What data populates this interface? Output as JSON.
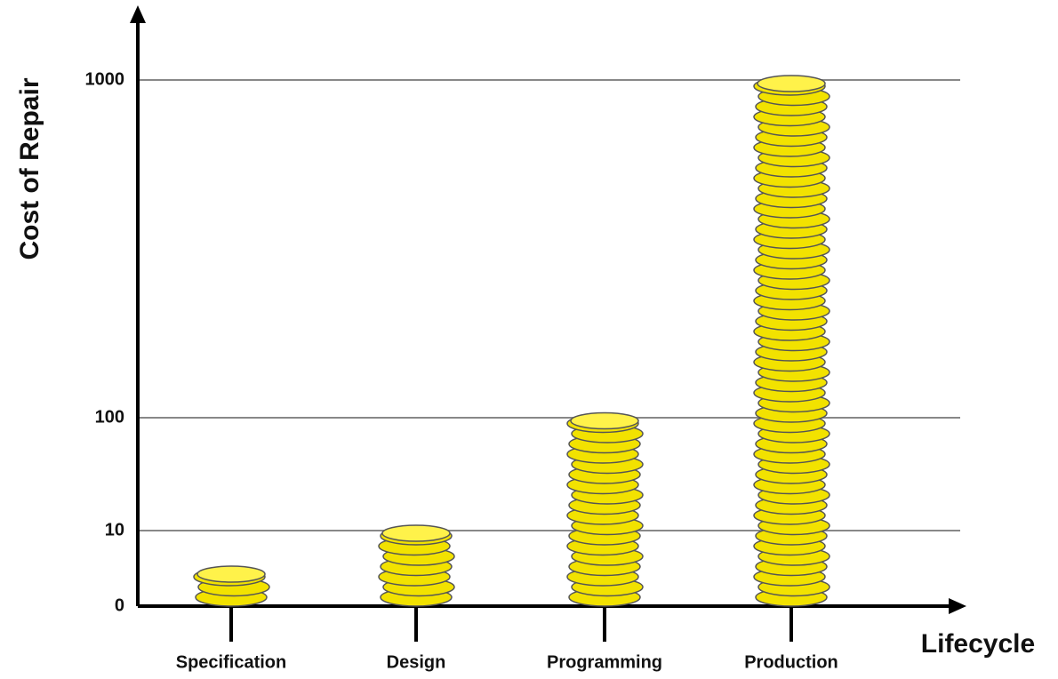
{
  "chart_data": {
    "type": "coin-stack",
    "x_label": "Lifecycle",
    "y_label": "Cost of Repair",
    "categories": [
      "Specification",
      "Design",
      "Programming",
      "Production"
    ],
    "values": [
      5,
      10,
      100,
      1000
    ],
    "color": "#f2e200",
    "ylim": [
      0,
      1000
    ],
    "yticks": [
      0,
      10,
      100,
      1000
    ],
    "grid": true
  }
}
